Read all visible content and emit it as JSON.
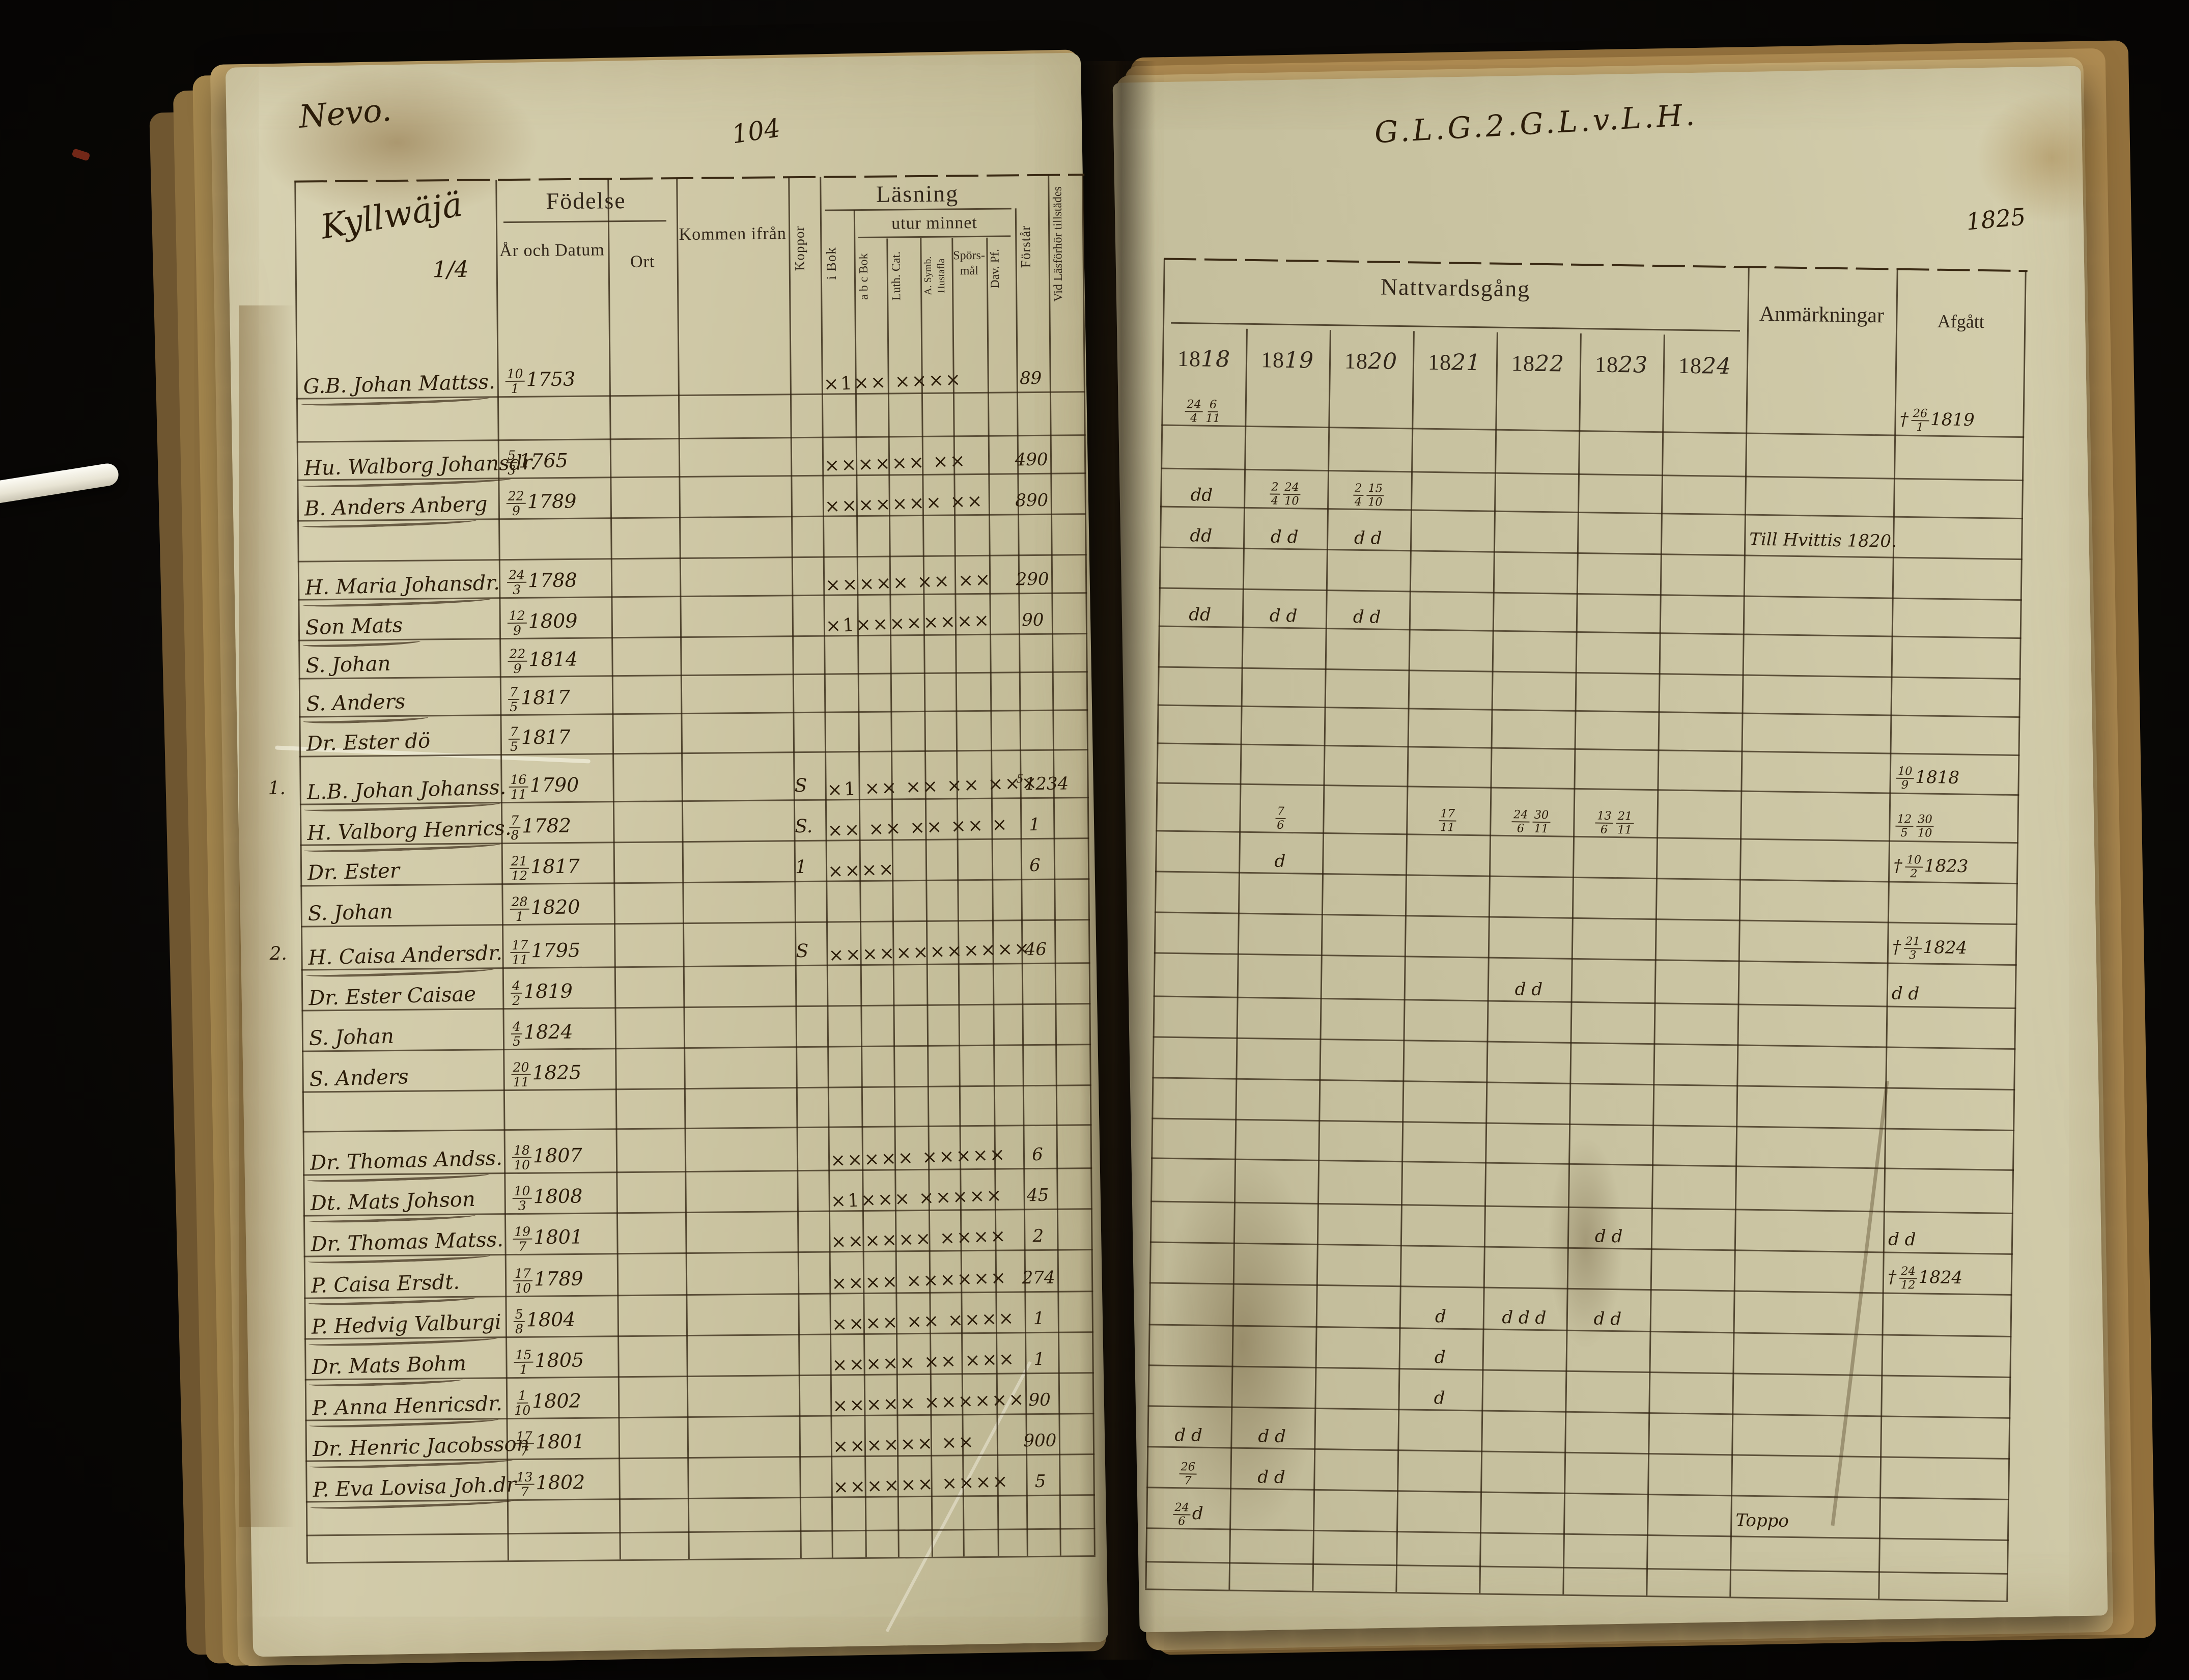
{
  "photo": {
    "backdrop_color": "#0a0806",
    "paper_color": "#cfc8a6",
    "ink_color": "#2b1c09",
    "pointer_object": "white-page-turner"
  },
  "left_page": {
    "corner_note": "Nevo.",
    "page_number": "104",
    "village_name": "Kyllwäjä",
    "village_share": "1/4",
    "headers": {
      "fodelse": "Födelse",
      "ar_och_datum": "År och Datum",
      "ort": "Ort",
      "kommen_ifran": "Kommen ifrån",
      "koppor": "Koppor",
      "lasning": "Läsning",
      "i_bok": "i Bok",
      "utur_minnet": "utur minnet",
      "abc_bok": "a b c Bok",
      "luth_cat": "Luth. Cat.",
      "a_symb_hustafla": "A. Symb. Hustafla",
      "spors_mal": "Spörs-mål",
      "dav_pf": "Dav. Pf.",
      "forstar": "Förstår",
      "vid_lasforhor": "Vid Läsförhör tillstädes"
    }
  },
  "right_page": {
    "script_heading": "G.L.G.2.G.L.v.L.H.",
    "year_note": "1825",
    "headers": {
      "nattvardsgang": "Nattvardsgång",
      "years": [
        "1818",
        "1819",
        "1820",
        "1821",
        "1822",
        "1823",
        "1824"
      ],
      "anmarkningar": "Anmärkningar",
      "afgatt": "Afgått"
    }
  },
  "rows": [
    {
      "name": "G.B. Johan Mattss.",
      "birth": "10/1 1753",
      "marks": "×1×× ××××",
      "forstar": "89",
      "c": [
        "24/4 6/11",
        "",
        "",
        "",
        "",
        "",
        ""
      ],
      "afg": "†26/1 1819",
      "ul": 1
    },
    {
      "spacer": 1
    },
    {
      "name": "Hu. Walborg Johansdr.",
      "birth": "5/3 1765",
      "marks": "×××××× ××",
      "forstar": "490",
      "c": [
        "dd",
        "2/4 24/10",
        "2/4 15/10",
        "",
        "",
        "",
        ""
      ],
      "ul": 1
    },
    {
      "name": "B. Anders Anberg",
      "birth": "22/9 1789",
      "marks": "××××××× ××",
      "forstar": "890",
      "c": [
        "dd",
        "d d",
        "d d",
        "",
        "",
        "",
        ""
      ],
      "anm": "Till Hvittis 1820.",
      "ul": 1
    },
    {
      "spacer": 1
    },
    {
      "name": "H. Maria Johansdr.",
      "birth": "24/3 1788",
      "marks": "××××× ×× ××",
      "forstar": "290",
      "c": [
        "dd",
        "d d",
        "d d",
        "",
        "",
        "",
        ""
      ],
      "ul": 1
    },
    {
      "name": "Son Mats",
      "birth": "12/9 1809",
      "marks": "×1××××××××",
      "forstar": "90",
      "ul": 1
    },
    {
      "name": "S. Johan",
      "birth": "22/9 1814"
    },
    {
      "name": "S. Anders",
      "birth": "7/5 1817",
      "ul": 1
    },
    {
      "name": "Dr. Ester dö",
      "birth": "7/5 1817",
      "afg": "10/9 1818"
    },
    {
      "no": "1.",
      "name": "L.B. Johan Johanss.",
      "birth": "16/11 1790",
      "kopp": "S",
      "marks": "×1 ×× ×× ×× ×××",
      "forstar": "1234",
      "forstar_pre": "5",
      "c": [
        "",
        "7/6",
        "",
        "17/11",
        "24/6 30/11",
        "13/6 21/11",
        ""
      ],
      "afg": "12/5 30/10",
      "ul": 1
    },
    {
      "name": "H. Valborg Henrics.",
      "birth": "7/8 1782",
      "kopp": "S.",
      "marks": "×× ×× ×× ×× ×",
      "forstar": "1",
      "c": [
        "",
        "d",
        "",
        "",
        "",
        "",
        ""
      ],
      "afg": "†10/2 1823",
      "ul": 1
    },
    {
      "name": "Dr. Ester",
      "birth": "21/12 1817",
      "kopp": "1",
      "marks": "××××",
      "forstar": "6"
    },
    {
      "name": "S. Johan",
      "birth": "28/1 1820",
      "afg": "†21/3 1824"
    },
    {
      "no": "2.",
      "name": "H. Caisa Andersdr.",
      "birth": "17/11 1795",
      "kopp": "S",
      "marks": "××××××××××××",
      "forstar": "46",
      "c": [
        "",
        "",
        "",
        "",
        "d d",
        "",
        ""
      ],
      "afg": "d d",
      "ul": 1
    },
    {
      "name": "Dr. Ester Caisae",
      "birth": "4/2 1819"
    },
    {
      "name": "S. Johan",
      "birth": "4/5 1824"
    },
    {
      "name": "S. Anders",
      "birth": "20/11 1825"
    },
    {
      "spacer": 1
    },
    {
      "name": "Dr. Thomas Andss.",
      "birth": "18/10 1807",
      "marks": "××××× ×××××",
      "forstar": "6",
      "ul": 1
    },
    {
      "name": "Dt. Mats Johson",
      "birth": "10/3 1808",
      "marks": "×1××× ×××××",
      "forstar": "45",
      "c": [
        "",
        "",
        "",
        "",
        "",
        "d d",
        ""
      ],
      "afg": "d d",
      "ul": 1
    },
    {
      "name": "Dr. Thomas Matss.",
      "birth": "19/7 1801",
      "marks": "×××××× ××××",
      "forstar": "2",
      "afg": "†24/12 1824",
      "ul": 1
    },
    {
      "name": "P. Caisa Ersdt.",
      "birth": "17/10 1789",
      "marks": "×××× ××××××",
      "forstar": "274",
      "c": [
        "",
        "",
        "",
        "d",
        "d d d",
        "d d",
        ""
      ],
      "ul": 1
    },
    {
      "name": "P. Hedvig Valburgi",
      "birth": "5/8 1804",
      "marks": "×××× ×× ××××",
      "forstar": "1",
      "c": [
        "",
        "",
        "",
        "d",
        "",
        "",
        ""
      ],
      "ul": 1
    },
    {
      "name": "Dr. Mats Bohm",
      "birth": "15/1 1805",
      "marks": "××××× ×× ×××",
      "forstar": "1",
      "c": [
        "",
        "",
        "",
        "d",
        "",
        "",
        ""
      ],
      "ul": 1
    },
    {
      "name": "P. Anna Henricsdr.",
      "birth": "1/10 1802",
      "marks": "××××× ××××××",
      "forstar": "90",
      "c": [
        "d d",
        "d d",
        "",
        "",
        "",
        "",
        ""
      ],
      "ul": 1
    },
    {
      "name": "Dr. Henric Jacobsson",
      "birth": "17/7 1801",
      "marks": "×××××× ××",
      "forstar": "900",
      "c": [
        "26/7",
        "d d",
        "",
        "",
        "",
        "",
        ""
      ],
      "ul": 1
    },
    {
      "name": "P. Eva Lovisa Joh.dr",
      "birth": "13/7 1802",
      "marks": "×××××× ××××",
      "forstar": "5",
      "c": [
        "24/6 d",
        "",
        "",
        "",
        "",
        "",
        ""
      ],
      "anm": "Toppo",
      "ul": 1
    },
    {
      "spacer": 1
    },
    {
      "spacer": 1
    }
  ]
}
